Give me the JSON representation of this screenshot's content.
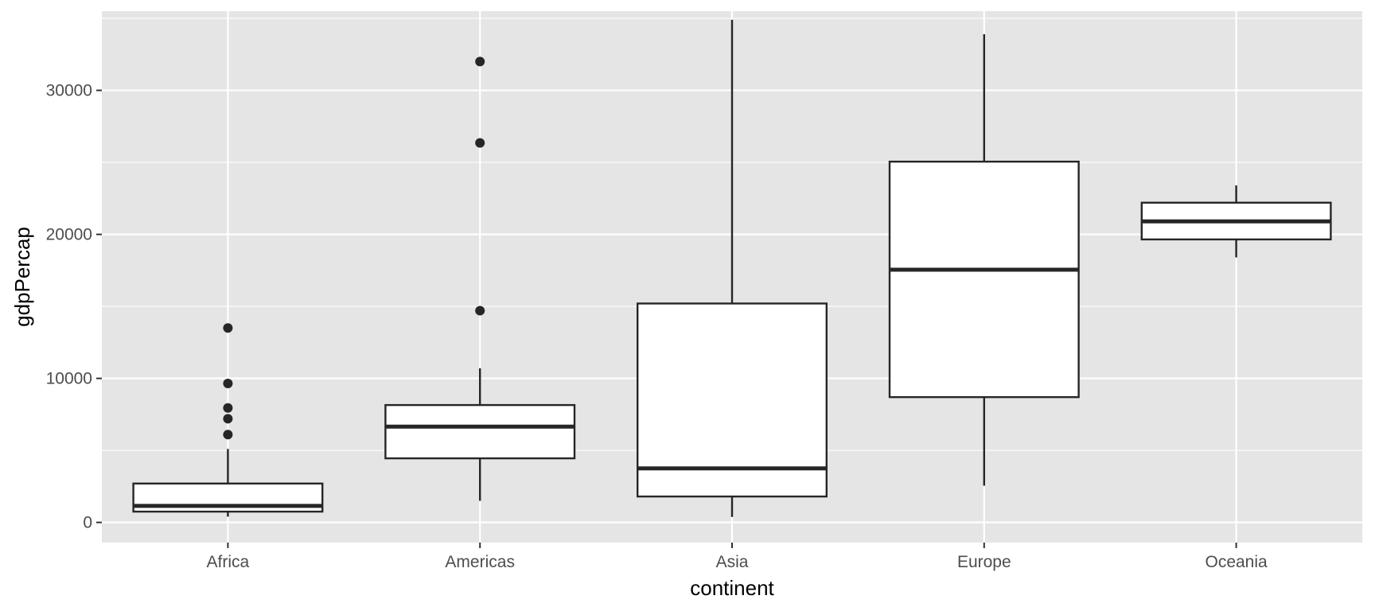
{
  "chart_data": {
    "type": "boxplot",
    "title": "",
    "xlabel": "continent",
    "ylabel": "gdpPercap",
    "categories": [
      "Africa",
      "Americas",
      "Asia",
      "Europe",
      "Oceania"
    ],
    "ylim": [
      -1400,
      35500
    ],
    "yticks": [
      0,
      10000,
      20000,
      30000
    ],
    "ytick_labels": [
      "0",
      "10000",
      "20000",
      "30000"
    ],
    "grid": true,
    "boxes": [
      {
        "category": "Africa",
        "whisker_low": 400,
        "q1": 750,
        "median": 1150,
        "q3": 2700,
        "whisker_high": 5100,
        "outliers": [
          6100,
          7200,
          7950,
          9650,
          13500
        ]
      },
      {
        "category": "Americas",
        "whisker_low": 1500,
        "q1": 4450,
        "median": 6650,
        "q3": 8150,
        "whisker_high": 10700,
        "outliers": [
          14700,
          26350,
          32000
        ]
      },
      {
        "category": "Asia",
        "whisker_low": 380,
        "q1": 1800,
        "median": 3750,
        "q3": 15200,
        "whisker_high": 34900,
        "outliers": []
      },
      {
        "category": "Europe",
        "whisker_low": 2550,
        "q1": 8700,
        "median": 17550,
        "q3": 25050,
        "whisker_high": 33900,
        "outliers": []
      },
      {
        "category": "Oceania",
        "whisker_low": 18400,
        "q1": 19650,
        "median": 20900,
        "q3": 22200,
        "whisker_high": 23400,
        "outliers": []
      }
    ],
    "colors": {
      "panel": "#e5e5e5",
      "grid": "#ffffff",
      "box_fill": "#ffffff",
      "box_line": "#262626"
    }
  }
}
